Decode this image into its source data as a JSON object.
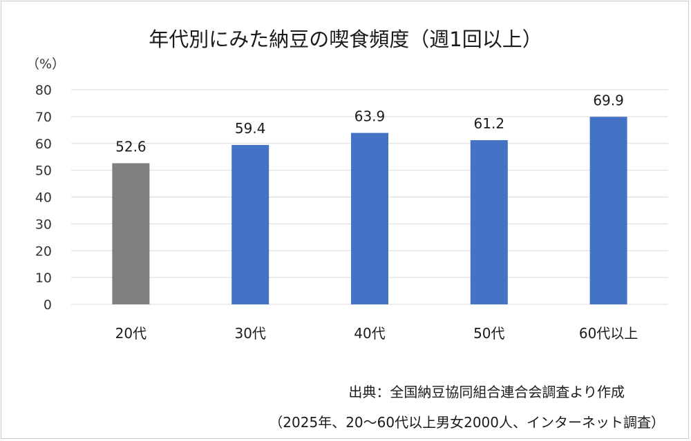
{
  "chart_data": {
    "type": "bar",
    "title": "年代別にみた納豆の喫食頻度（週1回以上）",
    "ylabel": "（%）",
    "ylim": [
      0,
      80
    ],
    "yticks": [
      0,
      10,
      20,
      30,
      40,
      50,
      60,
      70,
      80
    ],
    "grid": true,
    "categories": [
      "20代",
      "30代",
      "40代",
      "50代",
      "60代以上"
    ],
    "values": [
      52.6,
      59.4,
      63.9,
      61.2,
      69.9
    ],
    "data_labels": [
      "52.6",
      "59.4",
      "63.9",
      "61.2",
      "69.9"
    ],
    "bar_colors": [
      "#7f7f7f",
      "#4472c4",
      "#4472c4",
      "#4472c4",
      "#4472c4"
    ],
    "grid_color": "#d9d9d9"
  },
  "source": {
    "line1": "出典：全国納豆協同組合連合会調査より作成",
    "line2": "（2025年、20～60代以上男女2000人、インターネット調査）"
  }
}
